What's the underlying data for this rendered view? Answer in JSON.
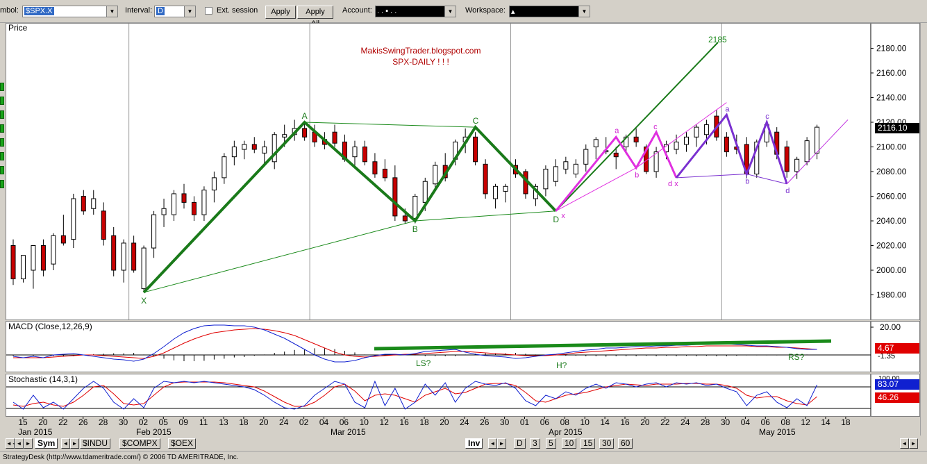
{
  "toolbar": {
    "symbol_label": "mbol:",
    "symbol_value": "$SPX.X",
    "interval_label": "Interval:",
    "interval_value": "D",
    "ext_session_label": "Ext. session",
    "apply_label": "Apply",
    "apply_all_label": "Apply All",
    "account_label": "Account:",
    "account_value": ".   .   ▪   .   .",
    "workspace_label": "Workspace:",
    "workspace_value": "▴"
  },
  "price_panel": {
    "title": "Price",
    "watermark_line1": "MakisSwingTrader.blogspot.com",
    "watermark_line2": "SPX-DAILY  ! ! !",
    "last_price": "2116.10"
  },
  "macd_panel": {
    "title": "MACD (Close,12,26,9)",
    "axis_top": "20.00",
    "value_red": "4.67",
    "value_line": "-1.35"
  },
  "stoch_panel": {
    "title": "Stochastic (14,3,1)",
    "axis_top": "100.00",
    "value_blue": "83.07",
    "value_red": "46.26"
  },
  "chart_data": {
    "type": "candlestick",
    "title": "SPX-DAILY",
    "ylim": [
      1960,
      2200
    ],
    "yticks": [
      1980,
      2000,
      2020,
      2040,
      2060,
      2080,
      2100,
      2120,
      2140,
      2160,
      2180
    ],
    "ytick_labels": [
      "1980.00",
      "2000.00",
      "2020.00",
      "2040.00",
      "2060.00",
      "2080.00",
      "2100.00",
      "2120.00",
      "2140.00",
      "2160.00",
      "2180.00"
    ],
    "x_day_labels": [
      "15",
      "20",
      "22",
      "26",
      "28",
      "30",
      "02",
      "05",
      "09",
      "11",
      "13",
      "18",
      "20",
      "24",
      "02",
      "04",
      "06",
      "10",
      "12",
      "16",
      "18",
      "20",
      "24",
      "26",
      "30",
      "01",
      "06",
      "08",
      "10",
      "14",
      "16",
      "20",
      "22",
      "24",
      "28",
      "30",
      "04",
      "06",
      "08",
      "12",
      "14",
      "18"
    ],
    "month_labels": [
      "Jan 2015",
      "Feb 2015",
      "Mar 2015",
      "Apr 2015",
      "May 2015"
    ],
    "month_label_index": [
      0,
      12,
      30,
      50,
      71
    ],
    "candles": [
      [
        2020,
        2025,
        1988,
        1993
      ],
      [
        1993,
        2010,
        1990,
        2012
      ],
      [
        2000,
        2018,
        1985,
        2020
      ],
      [
        2020,
        2025,
        1995,
        2000
      ],
      [
        2005,
        2030,
        2000,
        2028
      ],
      [
        2028,
        2045,
        2020,
        2022
      ],
      [
        2025,
        2062,
        2018,
        2058
      ],
      [
        2060,
        2065,
        2045,
        2048
      ],
      [
        2050,
        2065,
        2045,
        2058
      ],
      [
        2048,
        2055,
        2020,
        2025
      ],
      [
        2028,
        2035,
        1995,
        2000
      ],
      [
        2000,
        2025,
        1990,
        2022
      ],
      [
        2022,
        2028,
        1998,
        2000
      ],
      [
        1985,
        2020,
        1982,
        2018
      ],
      [
        2018,
        2048,
        2010,
        2045
      ],
      [
        2045,
        2058,
        2035,
        2050
      ],
      [
        2045,
        2065,
        2040,
        2062
      ],
      [
        2062,
        2070,
        2050,
        2055
      ],
      [
        2055,
        2060,
        2040,
        2045
      ],
      [
        2045,
        2068,
        2040,
        2065
      ],
      [
        2065,
        2080,
        2055,
        2075
      ],
      [
        2075,
        2095,
        2070,
        2092
      ],
      [
        2092,
        2105,
        2085,
        2100
      ],
      [
        2098,
        2105,
        2090,
        2102
      ],
      [
        2102,
        2108,
        2095,
        2098
      ],
      [
        2095,
        2105,
        2085,
        2100
      ],
      [
        2088,
        2112,
        2082,
        2110
      ],
      [
        2108,
        2118,
        2100,
        2110
      ],
      [
        2110,
        2122,
        2105,
        2115
      ],
      [
        2115,
        2120,
        2105,
        2108
      ],
      [
        2112,
        2118,
        2100,
        2104
      ],
      [
        2106,
        2112,
        2098,
        2102
      ],
      [
        2112,
        2118,
        2100,
        2103
      ],
      [
        2104,
        2110,
        2088,
        2090
      ],
      [
        2092,
        2105,
        2085,
        2100
      ],
      [
        2100,
        2105,
        2085,
        2088
      ],
      [
        2088,
        2095,
        2075,
        2078
      ],
      [
        2082,
        2090,
        2072,
        2075
      ],
      [
        2075,
        2085,
        2040,
        2044
      ],
      [
        2044,
        2050,
        2038,
        2040
      ],
      [
        2042,
        2062,
        2038,
        2060
      ],
      [
        2055,
        2075,
        2048,
        2072
      ],
      [
        2070,
        2088,
        2065,
        2085
      ],
      [
        2085,
        2095,
        2072,
        2075
      ],
      [
        2090,
        2106,
        2085,
        2104
      ],
      [
        2104,
        2115,
        2095,
        2108
      ],
      [
        2108,
        2112,
        2085,
        2088
      ],
      [
        2086,
        2090,
        2058,
        2062
      ],
      [
        2058,
        2070,
        2050,
        2068
      ],
      [
        2064,
        2070,
        2055,
        2068
      ],
      [
        2085,
        2090,
        2075,
        2078
      ],
      [
        2080,
        2082,
        2058,
        2062
      ],
      [
        2058,
        2070,
        2052,
        2068
      ],
      [
        2066,
        2085,
        2060,
        2082
      ],
      [
        2072,
        2090,
        2068,
        2084
      ],
      [
        2082,
        2092,
        2078,
        2088
      ],
      [
        2078,
        2090,
        2075,
        2086
      ],
      [
        2086,
        2102,
        2080,
        2098
      ],
      [
        2100,
        2108,
        2090,
        2106
      ],
      [
        2096,
        2108,
        2094,
        2097
      ],
      [
        2095,
        2100,
        2082,
        2092
      ],
      [
        2100,
        2110,
        2094,
        2108
      ],
      [
        2108,
        2115,
        2100,
        2104
      ],
      [
        2100,
        2102,
        2078,
        2080
      ],
      [
        2080,
        2100,
        2075,
        2096
      ],
      [
        2096,
        2105,
        2090,
        2102
      ],
      [
        2098,
        2110,
        2094,
        2104
      ],
      [
        2102,
        2112,
        2096,
        2108
      ],
      [
        2108,
        2118,
        2100,
        2116
      ],
      [
        2110,
        2122,
        2102,
        2118
      ],
      [
        2125,
        2130,
        2105,
        2108
      ],
      [
        2108,
        2112,
        2092,
        2096
      ],
      [
        2100,
        2110,
        2094,
        2098
      ],
      [
        2102,
        2108,
        2075,
        2078
      ],
      [
        2078,
        2106,
        2075,
        2104
      ],
      [
        2104,
        2120,
        2100,
        2118
      ],
      [
        2112,
        2116,
        2090,
        2094
      ],
      [
        2100,
        2105,
        2075,
        2080
      ],
      [
        2080,
        2092,
        2074,
        2090
      ],
      [
        2088,
        2108,
        2085,
        2105
      ],
      [
        2095,
        2118,
        2090,
        2116
      ]
    ],
    "candles_note": "open, high, low, close",
    "harmonic_points": [
      {
        "label": "X",
        "price": 1982,
        "index": 13
      },
      {
        "label": "A",
        "price": 2120,
        "index": 29
      },
      {
        "label": "B",
        "price": 2040,
        "index": 40
      },
      {
        "label": "C",
        "price": 2116,
        "index": 46
      },
      {
        "label": "D",
        "price": 2048,
        "index": 54
      }
    ],
    "target_label": "2185",
    "macd_labels": [
      "LS?",
      "H?",
      "RS?"
    ],
    "pattern_labels_magenta": [
      "x",
      "a",
      "b",
      "c",
      "d"
    ]
  }
}
